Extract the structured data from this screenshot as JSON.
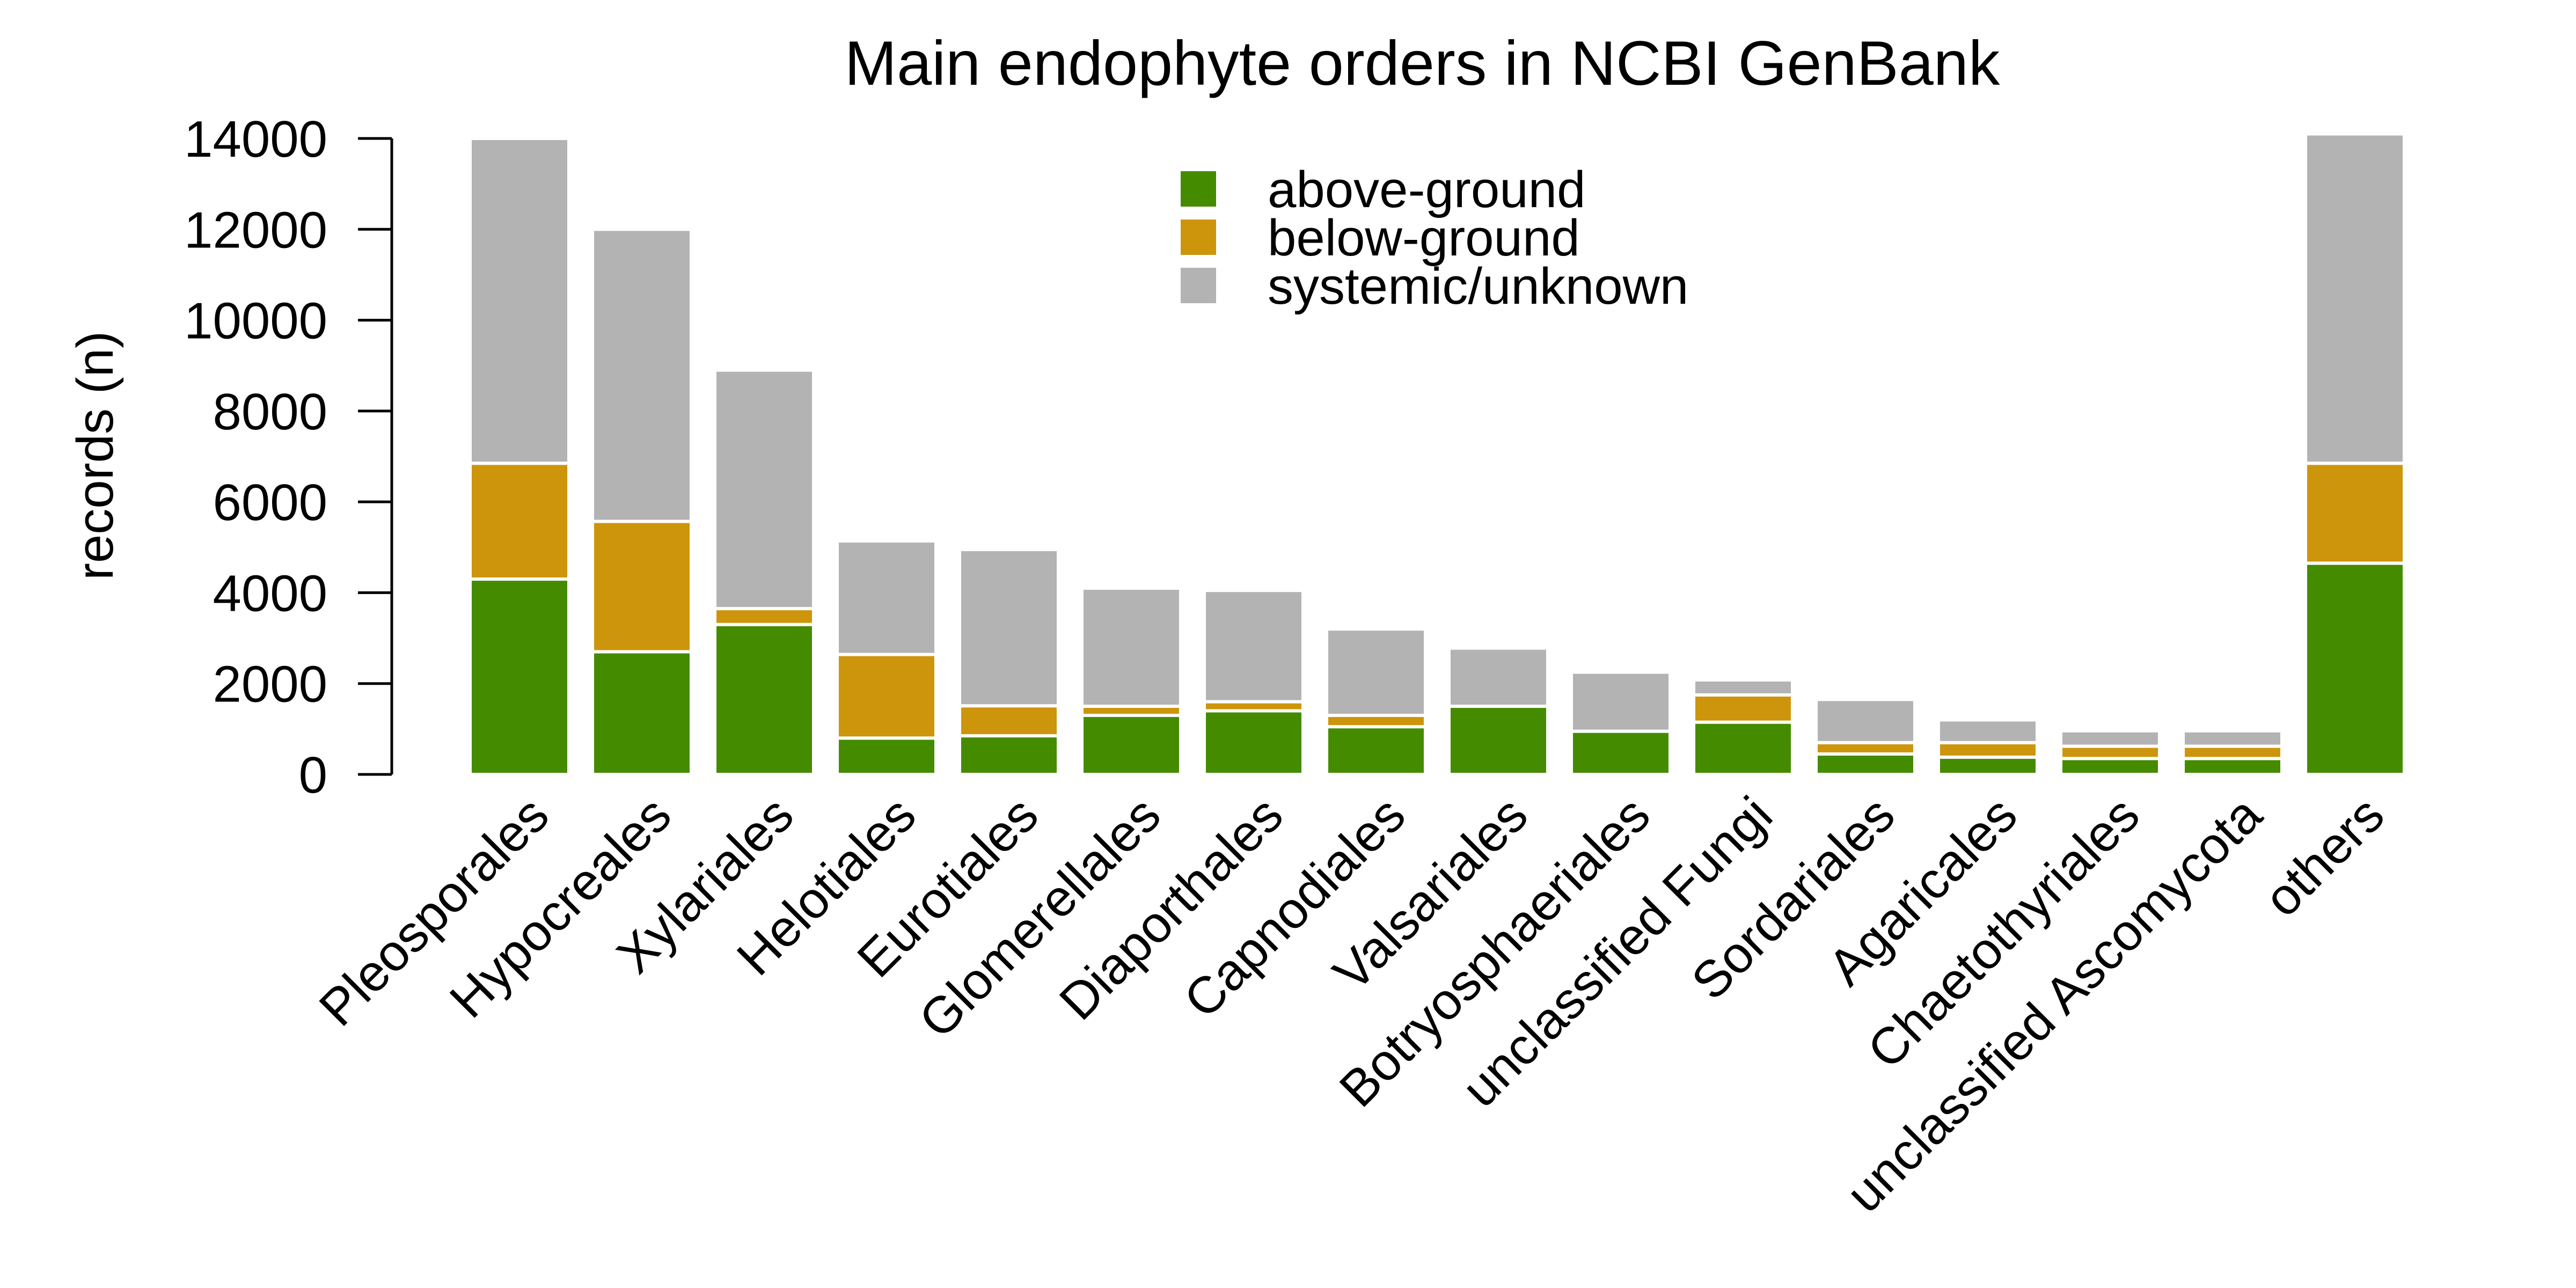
{
  "chart_data": {
    "type": "bar",
    "stacked": true,
    "title": "Main endophyte orders in NCBI GenBank",
    "xlabel": "",
    "ylabel": "records (n)",
    "ylim": [
      0,
      14000
    ],
    "yticks": [
      0,
      2000,
      4000,
      6000,
      8000,
      10000,
      12000,
      14000
    ],
    "grid": false,
    "legend_position": "top-center",
    "categories": [
      "Pleosporales",
      "Hypocreales",
      "Xylariales",
      "Helotiales",
      "Eurotiales",
      "Glomerellales",
      "Diaporthales",
      "Capnodiales",
      "Valsariales",
      "Botryosphaeriales",
      "unclassified Fungi",
      "Sordariales",
      "Agaricales",
      "Chaetothyriales",
      "unclassified Ascomycota",
      "others"
    ],
    "series": [
      {
        "name": "above-ground",
        "color": "#458B00",
        "values": [
          4300,
          2700,
          3300,
          800,
          850,
          1300,
          1400,
          1050,
          1500,
          950,
          1150,
          450,
          380,
          350,
          350,
          4650
        ]
      },
      {
        "name": "below-ground",
        "color": "#CD950C",
        "values": [
          2550,
          2870,
          350,
          1840,
          660,
          200,
          200,
          250,
          0,
          0,
          600,
          250,
          320,
          270,
          270,
          2200
        ]
      },
      {
        "name": "systemic/unknown",
        "color": "#B3B3B3",
        "values": [
          7150,
          6430,
          5250,
          2500,
          3440,
          2600,
          2450,
          1900,
          1280,
          1300,
          330,
          950,
          500,
          340,
          340,
          7250
        ]
      }
    ]
  }
}
